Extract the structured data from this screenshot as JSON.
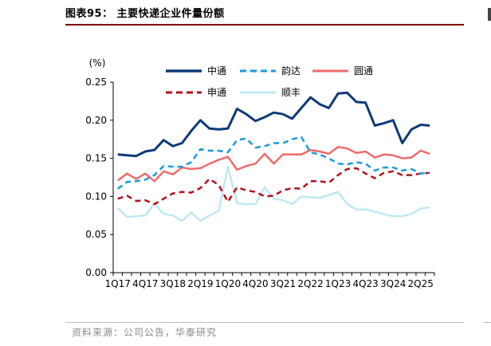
{
  "figure": {
    "title": "图表95：  主要快递企业件量份额",
    "source": "资料来源：公司公告，华泰研究"
  },
  "colors": {
    "zto": "#0d3a78",
    "yunda": "#1a9be0",
    "yto": "#f06b6b",
    "sto": "#b3101a",
    "sf": "#bfe8f5",
    "title_rule": "#7f0000"
  },
  "chart_data": {
    "type": "line",
    "title": "主要快递企业件量份额",
    "ylabel": "(%)",
    "xlabel": "",
    "ylim": [
      0,
      0.25
    ],
    "yticks": [
      "0.00",
      "0.05",
      "0.10",
      "0.15",
      "0.20",
      "0.25"
    ],
    "x_tick_labels": [
      "1Q17",
      "4Q17",
      "3Q18",
      "2Q19",
      "1Q20",
      "4Q20",
      "3Q21",
      "2Q22",
      "1Q23",
      "4Q23",
      "3Q24",
      "2Q25"
    ],
    "x_tick_index": [
      0,
      3,
      6,
      9,
      12,
      15,
      18,
      21,
      24,
      27,
      30,
      33
    ],
    "n_points": 35,
    "legend_position": "top",
    "series": [
      {
        "name": "中通",
        "key": "zto",
        "dash": "solid",
        "values": [
          0.155,
          0.154,
          0.153,
          0.159,
          0.161,
          0.174,
          0.166,
          0.17,
          0.186,
          0.2,
          0.189,
          0.188,
          0.189,
          0.215,
          0.208,
          0.199,
          0.204,
          0.21,
          0.208,
          0.202,
          0.216,
          0.23,
          0.221,
          0.216,
          0.235,
          0.236,
          0.224,
          0.223,
          0.193,
          0.196,
          0.2,
          0.17,
          0.188,
          0.194,
          0.193
        ]
      },
      {
        "name": "韵达",
        "key": "yunda",
        "dash": "dashed",
        "values": [
          0.11,
          0.119,
          0.12,
          0.122,
          0.128,
          0.14,
          0.139,
          0.139,
          0.145,
          0.162,
          0.16,
          0.16,
          0.158,
          0.174,
          0.176,
          0.164,
          0.166,
          0.17,
          0.17,
          0.175,
          0.178,
          0.158,
          0.155,
          0.15,
          0.143,
          0.142,
          0.145,
          0.143,
          0.134,
          0.138,
          0.138,
          0.134,
          0.136,
          0.13,
          0.131
        ]
      },
      {
        "name": "圆通",
        "key": "yto",
        "dash": "solid",
        "values": [
          0.121,
          0.13,
          0.123,
          0.13,
          0.12,
          0.133,
          0.129,
          0.138,
          0.136,
          0.137,
          0.143,
          0.148,
          0.152,
          0.135,
          0.14,
          0.143,
          0.156,
          0.143,
          0.155,
          0.155,
          0.155,
          0.161,
          0.159,
          0.156,
          0.165,
          0.163,
          0.157,
          0.159,
          0.151,
          0.155,
          0.154,
          0.15,
          0.151,
          0.16,
          0.156
        ]
      },
      {
        "name": "申通",
        "key": "sto",
        "dash": "dashed",
        "values": [
          0.097,
          0.101,
          0.094,
          0.095,
          0.09,
          0.097,
          0.104,
          0.106,
          0.105,
          0.111,
          0.123,
          0.115,
          0.093,
          0.112,
          0.108,
          0.106,
          0.1,
          0.101,
          0.108,
          0.111,
          0.11,
          0.12,
          0.12,
          0.118,
          0.128,
          0.136,
          0.137,
          0.13,
          0.124,
          0.131,
          0.133,
          0.128,
          0.128,
          0.13,
          0.131
        ]
      },
      {
        "name": "顺丰",
        "key": "sf",
        "dash": "solid",
        "values": [
          0.085,
          0.073,
          0.074,
          0.075,
          0.091,
          0.077,
          0.075,
          0.068,
          0.079,
          0.068,
          0.075,
          0.081,
          0.139,
          0.091,
          0.09,
          0.09,
          0.112,
          0.097,
          0.095,
          0.09,
          0.1,
          0.099,
          0.098,
          0.102,
          0.106,
          0.09,
          0.083,
          0.083,
          0.08,
          0.077,
          0.074,
          0.074,
          0.077,
          0.084,
          0.086
        ]
      }
    ]
  }
}
